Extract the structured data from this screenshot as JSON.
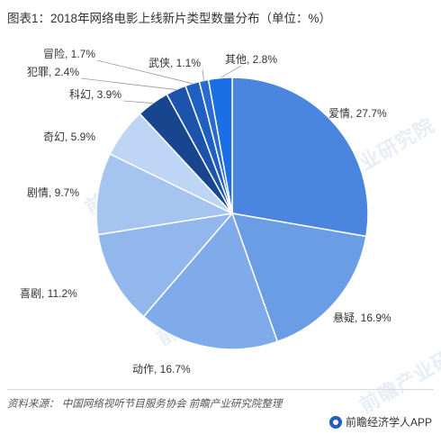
{
  "title": "图表1：2018年网络电影上线新片类型数量分布（单位：%）",
  "watermark": "前瞻产业研究院",
  "source": "资料来源： 中国网络视听节目服务协会  前瞻产业研究院整理",
  "brand": "前瞻经济学人APP",
  "chart_data": {
    "type": "pie",
    "title": "图表1：2018年网络电影上线新片类型数量分布（单位：%）",
    "slices": [
      {
        "label": "爱情, 27.7%",
        "name": "爱情",
        "value": 27.7,
        "color": "#4a86e0"
      },
      {
        "label": "悬疑, 16.9%",
        "name": "悬疑",
        "value": 16.9,
        "color": "#6b9de6"
      },
      {
        "label": "动作, 16.7%",
        "name": "动作",
        "value": 16.7,
        "color": "#80abea"
      },
      {
        "label": "喜剧, 11.2%",
        "name": "喜剧",
        "value": 11.2,
        "color": "#92b7ed"
      },
      {
        "label": "剧情, 9.7%",
        "name": "剧情",
        "value": 9.7,
        "color": "#a6c4f0"
      },
      {
        "label": "奇幻, 5.9%",
        "name": "奇幻",
        "value": 5.9,
        "color": "#bfd5f5"
      },
      {
        "label": "科幻, 3.9%",
        "name": "科幻",
        "value": 3.9,
        "color": "#17468f"
      },
      {
        "label": "犯罪, 2.4%",
        "name": "犯罪",
        "value": 2.4,
        "color": "#1c54ad"
      },
      {
        "label": "冒险, 1.7%",
        "name": "冒险",
        "value": 1.7,
        "color": "#1f5fc2"
      },
      {
        "label": "武侠, 1.1%",
        "name": "武侠",
        "value": 1.1,
        "color": "#2a6bd0"
      },
      {
        "label": "其他, 2.8%",
        "name": "其他",
        "value": 2.8,
        "color": "#1a6ee6"
      }
    ]
  }
}
